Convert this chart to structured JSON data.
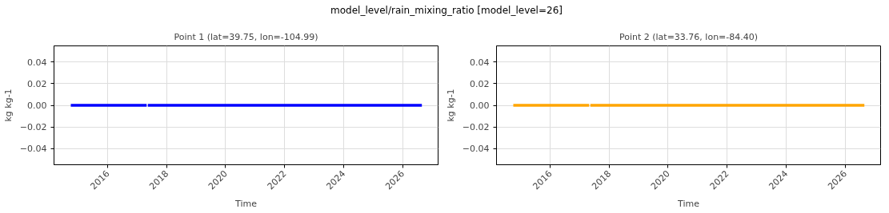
{
  "chart_data": [
    {
      "type": "line",
      "title": "Point 1 (lat=39.75, lon=-104.99)",
      "xlabel": "Time",
      "ylabel": "kg kg-1",
      "annotations": [
        "model_level/rain_mixing_ratio [model_level=26]"
      ],
      "x": [
        "2014-10-01",
        "2015-06-01",
        "2016-06-01",
        "2017-04-28",
        "2017-05-05",
        "2017-05-12",
        "2018-06-01",
        "2020-06-01",
        "2022-06-01",
        "2024-06-01",
        "2026-08-28"
      ],
      "series": [
        {
          "color": "#0000ff",
          "values": [
            0,
            0,
            0,
            0,
            null,
            0,
            0,
            0,
            0,
            0,
            0
          ]
        }
      ],
      "xlim": [
        "2014-03-07",
        "2027-03-17"
      ],
      "xticks": [
        "2016",
        "2018",
        "2020",
        "2022",
        "2024",
        "2026"
      ],
      "ylim": [
        -0.055,
        0.055
      ],
      "yticks": [
        {
          "value": -0.04,
          "label": "−0.04"
        },
        {
          "value": -0.02,
          "label": "−0.02"
        },
        {
          "value": 0,
          "label": "0.00"
        },
        {
          "value": 0.02,
          "label": "0.02"
        },
        {
          "value": 0.04,
          "label": "0.04"
        }
      ],
      "grid": true,
      "line_style": "solid"
    },
    {
      "type": "line",
      "title": "Point 2 (lat=33.76, lon=-84.40)",
      "xlabel": "Time",
      "ylabel": "kg kg-1",
      "x": [
        "2014-10-01",
        "2015-06-01",
        "2016-06-01",
        "2017-04-28",
        "2017-05-05",
        "2017-05-12",
        "2018-06-01",
        "2020-06-01",
        "2022-06-01",
        "2024-06-01",
        "2026-08-28"
      ],
      "series": [
        {
          "color": "#ffa500",
          "values": [
            0,
            0,
            0,
            0,
            null,
            0,
            0,
            0,
            0,
            0,
            0
          ]
        }
      ],
      "xlim": [
        "2014-03-07",
        "2027-03-17"
      ],
      "xticks": [
        "2016",
        "2018",
        "2020",
        "2022",
        "2024",
        "2026"
      ],
      "ylim": [
        -0.055,
        0.055
      ],
      "yticks": [
        {
          "value": -0.04,
          "label": "−0.04"
        },
        {
          "value": -0.02,
          "label": "−0.02"
        },
        {
          "value": 0,
          "label": "0.00"
        },
        {
          "value": 0.02,
          "label": "0.02"
        },
        {
          "value": 0.04,
          "label": "0.04"
        }
      ],
      "grid": true,
      "line_style": "solid"
    }
  ]
}
